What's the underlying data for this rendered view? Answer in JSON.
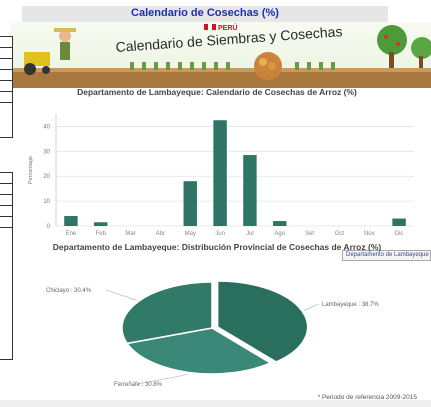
{
  "page": {
    "header_title": "Calendario de  Cosechas (%)"
  },
  "banner": {
    "country": "PERÚ",
    "title": "Calendario de Siembras y Cosechas",
    "flag_color": "#d91023"
  },
  "chart1": {
    "title": "Departamento de Lambayeque: Calendario de Cosechas de Arroz (%)",
    "ylabel": "Percentage"
  },
  "chart2": {
    "title": "Departamento de Lambayeque: Distribución Provincial de Cosechas de Arroz (%)",
    "tab_label": "Departamento de Lambayeque"
  },
  "footnote": "* Periodo de referencia 2009-2015",
  "colors": {
    "bar": "#2f7565",
    "slice1": "#2a6f5e",
    "slice2": "#3c8878",
    "slice3": "#317a68",
    "title_blue": "#1f2fb0"
  },
  "chart_data": [
    {
      "type": "bar",
      "title": "Departamento de Lambayeque: Calendario de Cosechas de Arroz (%)",
      "xlabel": "",
      "ylabel": "Percentage",
      "categories": [
        "Ene",
        "Feb",
        "Mar",
        "Abr",
        "May",
        "Jun",
        "Jul",
        "Ago",
        "Set",
        "Oct",
        "Nov",
        "Dic"
      ],
      "values": [
        4,
        1.5,
        0,
        0,
        18,
        42.5,
        28.5,
        2,
        0,
        0,
        0,
        3
      ],
      "yticks": [
        0,
        10,
        20,
        30,
        40
      ],
      "ylim": [
        0,
        45
      ],
      "grid": true
    },
    {
      "type": "pie",
      "title": "Departamento de Lambayeque: Distribución Provincial de Cosechas de Arroz (%)",
      "slices": [
        {
          "label": "Lambayeque",
          "value": 38.7
        },
        {
          "label": "Ferreñafe",
          "value": 30.8
        },
        {
          "label": "Chiclayo",
          "value": 30.4
        }
      ]
    }
  ]
}
